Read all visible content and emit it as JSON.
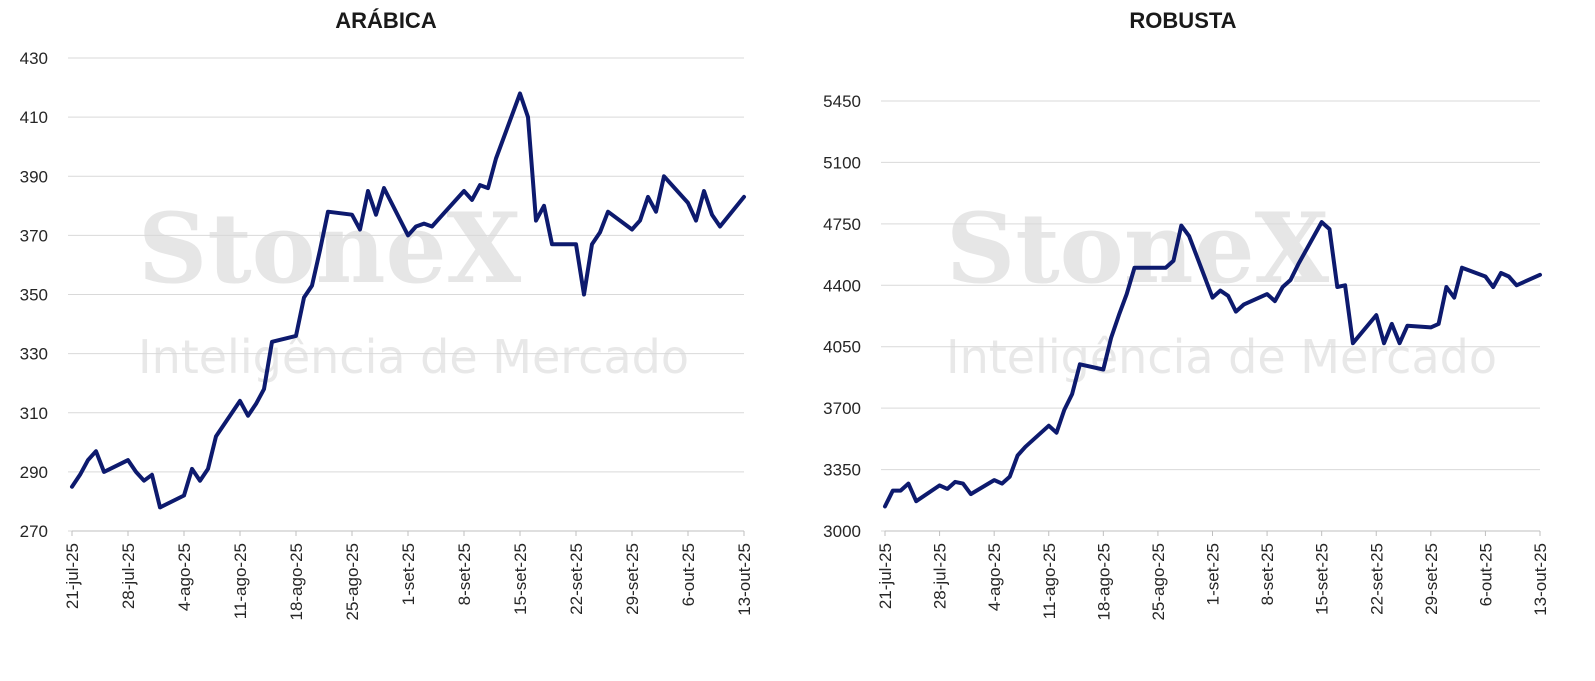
{
  "watermark": {
    "brand": "StoneX",
    "tagline": "Inteligência de Mercado"
  },
  "colors": {
    "series": "#0d1a6e",
    "grid": "#d9d9d9"
  },
  "chart_data": [
    {
      "type": "line",
      "title": "ARÁBICA",
      "ylim": [
        270,
        430
      ],
      "yticks": [
        270,
        290,
        310,
        330,
        350,
        370,
        390,
        410,
        430
      ],
      "xtick_labels": [
        "21-jul-25",
        "28-jul-25",
        "4-ago-25",
        "11-ago-25",
        "18-ago-25",
        "25-ago-25",
        "1-set-25",
        "8-set-25",
        "15-set-25",
        "22-set-25",
        "29-set-25",
        "6-out-25",
        "13-out-25"
      ],
      "grid": true,
      "x": [
        "2025-07-21",
        "2025-07-22",
        "2025-07-23",
        "2025-07-24",
        "2025-07-25",
        "2025-07-28",
        "2025-07-29",
        "2025-07-30",
        "2025-07-31",
        "2025-08-01",
        "2025-08-04",
        "2025-08-05",
        "2025-08-06",
        "2025-08-07",
        "2025-08-08",
        "2025-08-11",
        "2025-08-12",
        "2025-08-13",
        "2025-08-14",
        "2025-08-15",
        "2025-08-18",
        "2025-08-19",
        "2025-08-20",
        "2025-08-21",
        "2025-08-22",
        "2025-08-25",
        "2025-08-26",
        "2025-08-27",
        "2025-08-28",
        "2025-08-29",
        "2025-09-01",
        "2025-09-02",
        "2025-09-03",
        "2025-09-04",
        "2025-09-05",
        "2025-09-08",
        "2025-09-09",
        "2025-09-10",
        "2025-09-11",
        "2025-09-12",
        "2025-09-15",
        "2025-09-16",
        "2025-09-17",
        "2025-09-18",
        "2025-09-19",
        "2025-09-22",
        "2025-09-23",
        "2025-09-24",
        "2025-09-25",
        "2025-09-26",
        "2025-09-29",
        "2025-09-30",
        "2025-10-01",
        "2025-10-02",
        "2025-10-03",
        "2025-10-06",
        "2025-10-07",
        "2025-10-08",
        "2025-10-09",
        "2025-10-10",
        "2025-10-13"
      ],
      "series": [
        {
          "values": [
            285,
            289,
            294,
            297,
            290,
            294,
            290,
            287,
            289,
            278,
            282,
            291,
            287,
            291,
            302,
            314,
            309,
            313,
            318,
            334,
            336,
            349,
            353,
            365,
            378,
            377,
            372,
            385,
            377,
            386,
            370,
            373,
            374,
            373,
            376,
            385,
            382,
            387,
            386,
            396,
            418,
            410,
            375,
            380,
            367,
            367,
            350,
            367,
            371,
            378,
            372,
            375,
            383,
            378,
            390,
            381,
            375,
            385,
            377,
            373,
            383
          ]
        }
      ]
    },
    {
      "type": "line",
      "title": "ROBUSTA",
      "ylim": [
        3000,
        5450
      ],
      "yticks": [
        3000,
        3350,
        3700,
        4050,
        4400,
        4750,
        5100,
        5450
      ],
      "xtick_labels": [
        "21-jul-25",
        "28-jul-25",
        "4-ago-25",
        "11-ago-25",
        "18-ago-25",
        "25-ago-25",
        "1-set-25",
        "8-set-25",
        "15-set-25",
        "22-set-25",
        "29-set-25",
        "6-out-25",
        "13-out-25"
      ],
      "grid": true,
      "x": [
        "2025-07-21",
        "2025-07-22",
        "2025-07-23",
        "2025-07-24",
        "2025-07-25",
        "2025-07-28",
        "2025-07-29",
        "2025-07-30",
        "2025-07-31",
        "2025-08-01",
        "2025-08-04",
        "2025-08-05",
        "2025-08-06",
        "2025-08-07",
        "2025-08-08",
        "2025-08-11",
        "2025-08-12",
        "2025-08-13",
        "2025-08-14",
        "2025-08-15",
        "2025-08-18",
        "2025-08-19",
        "2025-08-20",
        "2025-08-21",
        "2025-08-22",
        "2025-08-25",
        "2025-08-26",
        "2025-08-27",
        "2025-08-28",
        "2025-08-29",
        "2025-09-01",
        "2025-09-02",
        "2025-09-03",
        "2025-09-04",
        "2025-09-05",
        "2025-09-08",
        "2025-09-09",
        "2025-09-10",
        "2025-09-11",
        "2025-09-12",
        "2025-09-15",
        "2025-09-16",
        "2025-09-17",
        "2025-09-18",
        "2025-09-19",
        "2025-09-22",
        "2025-09-23",
        "2025-09-24",
        "2025-09-25",
        "2025-09-26",
        "2025-09-29",
        "2025-09-30",
        "2025-10-01",
        "2025-10-02",
        "2025-10-03",
        "2025-10-06",
        "2025-10-07",
        "2025-10-08",
        "2025-10-09",
        "2025-10-10",
        "2025-10-13"
      ],
      "series": [
        {
          "values": [
            3140,
            3230,
            3230,
            3270,
            3170,
            3260,
            3240,
            3280,
            3270,
            3210,
            3290,
            3270,
            3310,
            3430,
            3480,
            3600,
            3560,
            3690,
            3780,
            3950,
            3920,
            4100,
            4230,
            4350,
            4500,
            4500,
            4500,
            4540,
            4740,
            4680,
            4330,
            4370,
            4340,
            4250,
            4290,
            4350,
            4310,
            4390,
            4430,
            4520,
            4760,
            4720,
            4390,
            4400,
            4070,
            4230,
            4070,
            4180,
            4070,
            4170,
            4160,
            4180,
            4390,
            4330,
            4500,
            4450,
            4390,
            4470,
            4450,
            4400,
            4460
          ]
        }
      ]
    }
  ]
}
